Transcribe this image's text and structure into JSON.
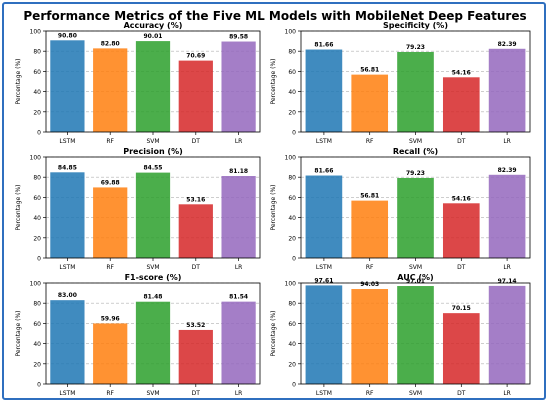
{
  "page": {
    "title": "Performance Metrics of the Five ML Models with MobileNet Deep Features",
    "frame_color": "#2f6fbf"
  },
  "chart_data": [
    {
      "type": "bar",
      "title": "Accuracy (%)",
      "xlabel": "",
      "ylabel": "Percentage (%)",
      "ylim": [
        0,
        100
      ],
      "yticks": [
        0,
        20,
        40,
        60,
        80,
        100
      ],
      "grid": true,
      "categories": [
        "LSTM",
        "RF",
        "SVM",
        "DT",
        "LR"
      ],
      "values": [
        90.8,
        82.8,
        90.01,
        70.69,
        89.58
      ],
      "value_labels": [
        "90.80",
        "82.80",
        "90.01",
        "70.69",
        "89.58"
      ],
      "colors": [
        "#1f77b4",
        "#ff7f0e",
        "#2ca02c",
        "#d62728",
        "#9467bd"
      ]
    },
    {
      "type": "bar",
      "title": "Specificity (%)",
      "xlabel": "",
      "ylabel": "Percentage (%)",
      "ylim": [
        0,
        100
      ],
      "yticks": [
        0,
        20,
        40,
        60,
        80,
        100
      ],
      "grid": true,
      "categories": [
        "LSTM",
        "RF",
        "SVM",
        "DT",
        "LR"
      ],
      "values": [
        81.66,
        56.81,
        79.23,
        54.16,
        82.39
      ],
      "value_labels": [
        "81.66",
        "56.81",
        "79.23",
        "54.16",
        "82.39"
      ],
      "colors": [
        "#1f77b4",
        "#ff7f0e",
        "#2ca02c",
        "#d62728",
        "#9467bd"
      ]
    },
    {
      "type": "bar",
      "title": "Precision (%)",
      "xlabel": "",
      "ylabel": "Percentage (%)",
      "ylim": [
        0,
        100
      ],
      "yticks": [
        0,
        20,
        40,
        60,
        80,
        100
      ],
      "grid": true,
      "categories": [
        "LSTM",
        "RF",
        "SVM",
        "DT",
        "LR"
      ],
      "values": [
        84.85,
        69.88,
        84.55,
        53.16,
        81.18
      ],
      "value_labels": [
        "84.85",
        "69.88",
        "84.55",
        "53.16",
        "81.18"
      ],
      "colors": [
        "#1f77b4",
        "#ff7f0e",
        "#2ca02c",
        "#d62728",
        "#9467bd"
      ]
    },
    {
      "type": "bar",
      "title": "Recall (%)",
      "xlabel": "",
      "ylabel": "Percentage (%)",
      "ylim": [
        0,
        100
      ],
      "yticks": [
        0,
        20,
        40,
        60,
        80,
        100
      ],
      "grid": true,
      "categories": [
        "LSTM",
        "RF",
        "SVM",
        "DT",
        "LR"
      ],
      "values": [
        81.66,
        56.81,
        79.23,
        54.16,
        82.39
      ],
      "value_labels": [
        "81.66",
        "56.81",
        "79.23",
        "54.16",
        "82.39"
      ],
      "colors": [
        "#1f77b4",
        "#ff7f0e",
        "#2ca02c",
        "#d62728",
        "#9467bd"
      ]
    },
    {
      "type": "bar",
      "title": "F1-score (%)",
      "xlabel": "",
      "ylabel": "Percentage (%)",
      "ylim": [
        0,
        100
      ],
      "yticks": [
        0,
        20,
        40,
        60,
        80,
        100
      ],
      "grid": true,
      "categories": [
        "LSTM",
        "RF",
        "SVM",
        "DT",
        "LR"
      ],
      "values": [
        83.0,
        59.96,
        81.48,
        53.52,
        81.54
      ],
      "value_labels": [
        "83.00",
        "59.96",
        "81.48",
        "53.52",
        "81.54"
      ],
      "colors": [
        "#1f77b4",
        "#ff7f0e",
        "#2ca02c",
        "#d62728",
        "#9467bd"
      ]
    },
    {
      "type": "bar",
      "title": "AUC (%)",
      "xlabel": "",
      "ylabel": "Percentage (%)",
      "ylim": [
        0,
        100
      ],
      "yticks": [
        0,
        20,
        40,
        60,
        80,
        100
      ],
      "grid": true,
      "categories": [
        "LSTM",
        "RF",
        "SVM",
        "DT",
        "LR"
      ],
      "values": [
        97.61,
        94.03,
        97.01,
        70.15,
        97.14
      ],
      "value_labels": [
        "97.61",
        "94.03",
        "97.01",
        "70.15",
        "97.14"
      ],
      "colors": [
        "#1f77b4",
        "#ff7f0e",
        "#2ca02c",
        "#d62728",
        "#9467bd"
      ]
    }
  ]
}
